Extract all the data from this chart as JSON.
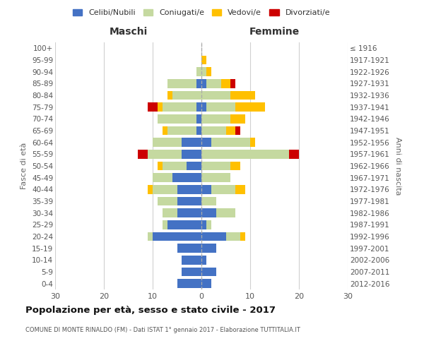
{
  "age_groups": [
    "0-4",
    "5-9",
    "10-14",
    "15-19",
    "20-24",
    "25-29",
    "30-34",
    "35-39",
    "40-44",
    "45-49",
    "50-54",
    "55-59",
    "60-64",
    "65-69",
    "70-74",
    "75-79",
    "80-84",
    "85-89",
    "90-94",
    "95-99",
    "100+"
  ],
  "birth_years": [
    "2012-2016",
    "2007-2011",
    "2002-2006",
    "1997-2001",
    "1992-1996",
    "1987-1991",
    "1982-1986",
    "1977-1981",
    "1972-1976",
    "1967-1971",
    "1962-1966",
    "1957-1961",
    "1952-1956",
    "1947-1951",
    "1942-1946",
    "1937-1941",
    "1932-1936",
    "1927-1931",
    "1922-1926",
    "1917-1921",
    "≤ 1916"
  ],
  "maschi": {
    "celibi": [
      5,
      4,
      4,
      5,
      10,
      7,
      5,
      5,
      5,
      6,
      3,
      4,
      4,
      1,
      1,
      1,
      0,
      1,
      0,
      0,
      0
    ],
    "coniugati": [
      0,
      0,
      0,
      0,
      1,
      1,
      3,
      4,
      5,
      4,
      5,
      7,
      6,
      6,
      8,
      7,
      6,
      6,
      1,
      0,
      0
    ],
    "vedovi": [
      0,
      0,
      0,
      0,
      0,
      0,
      0,
      0,
      1,
      0,
      1,
      0,
      0,
      1,
      0,
      1,
      1,
      0,
      0,
      0,
      0
    ],
    "divorziati": [
      0,
      0,
      0,
      0,
      0,
      0,
      0,
      0,
      0,
      0,
      0,
      2,
      0,
      0,
      0,
      2,
      0,
      0,
      0,
      0,
      0
    ]
  },
  "femmine": {
    "nubili": [
      2,
      3,
      1,
      3,
      5,
      1,
      3,
      0,
      2,
      0,
      0,
      0,
      2,
      0,
      0,
      1,
      0,
      1,
      0,
      0,
      0
    ],
    "coniugate": [
      0,
      0,
      0,
      0,
      3,
      1,
      4,
      3,
      5,
      6,
      6,
      18,
      8,
      5,
      6,
      6,
      6,
      3,
      1,
      0,
      0
    ],
    "vedove": [
      0,
      0,
      0,
      0,
      1,
      0,
      0,
      0,
      2,
      0,
      2,
      0,
      1,
      2,
      3,
      6,
      5,
      2,
      1,
      1,
      0
    ],
    "divorziate": [
      0,
      0,
      0,
      0,
      0,
      0,
      0,
      0,
      0,
      0,
      0,
      2,
      0,
      1,
      0,
      0,
      0,
      1,
      0,
      0,
      0
    ]
  },
  "colors": {
    "celibi": "#4472c4",
    "coniugati": "#c5d9a0",
    "vedovi": "#ffc000",
    "divorziati": "#cc0000"
  },
  "xlim": 30,
  "title": "Popolazione per età, sesso e stato civile - 2017",
  "subtitle": "COMUNE DI MONTE RINALDO (FM) - Dati ISTAT 1° gennaio 2017 - Elaborazione TUTTITALIA.IT",
  "ylabel_left": "Fasce di età",
  "ylabel_right": "Anni di nascita",
  "xlabel_maschi": "Maschi",
  "xlabel_femmine": "Femmine",
  "legend_labels": [
    "Celibi/Nubili",
    "Coniugati/e",
    "Vedovi/e",
    "Divorziati/e"
  ],
  "bg_color": "#ffffff",
  "grid_color": "#d0d0d0"
}
